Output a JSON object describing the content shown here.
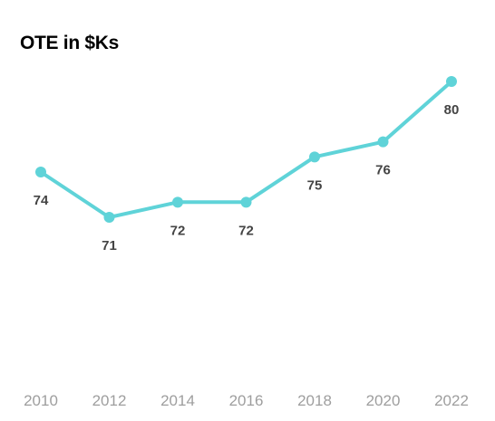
{
  "chart_data": {
    "type": "line",
    "title": "OTE in $Ks",
    "xlabel": "",
    "ylabel": "",
    "categories": [
      "2010",
      "2012",
      "2014",
      "2016",
      "2018",
      "2020",
      "2022"
    ],
    "series": [
      {
        "values": [
          74,
          71,
          72,
          72,
          75,
          76,
          80
        ],
        "color": "#5fd3d8"
      }
    ],
    "label_position": [
      "below",
      "below",
      "below",
      "below",
      "below",
      "below",
      "below"
    ],
    "grid": false,
    "legend": "none"
  }
}
